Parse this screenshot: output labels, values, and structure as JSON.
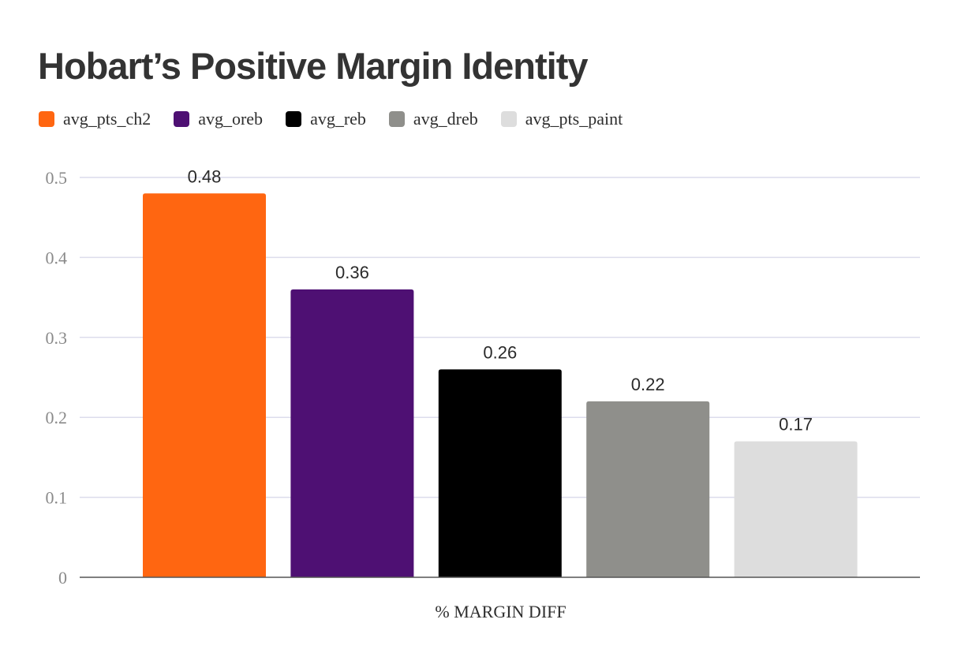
{
  "chart_data": {
    "type": "bar",
    "title": "Hobart’s Positive Margin Identity",
    "xlabel": "% MARGIN DIFF",
    "ylabel": "",
    "ylim": [
      0,
      0.5
    ],
    "yticks": [
      "0",
      "0.1",
      "0.2",
      "0.3",
      "0.4",
      "0.5"
    ],
    "grid": true,
    "legend_position": "top-left",
    "series": [
      {
        "name": "avg_pts_ch2",
        "value": 0.48,
        "label": "0.48",
        "color": "#ff6611"
      },
      {
        "name": "avg_oreb",
        "value": 0.36,
        "label": "0.36",
        "color": "#4e1073"
      },
      {
        "name": "avg_reb",
        "value": 0.26,
        "label": "0.26",
        "color": "#000000"
      },
      {
        "name": "avg_dreb",
        "value": 0.22,
        "label": "0.22",
        "color": "#8f8f8b"
      },
      {
        "name": "avg_pts_paint",
        "value": 0.17,
        "label": "0.17",
        "color": "#dddddd"
      }
    ]
  }
}
